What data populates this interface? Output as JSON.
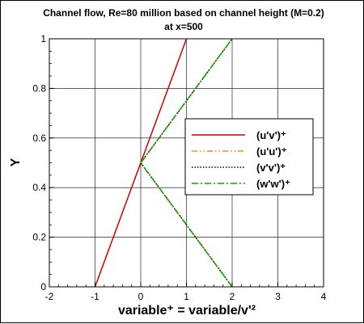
{
  "chart_data": {
    "type": "line",
    "title": "Channel flow, Re=80 million based on channel height (M=0.2)",
    "subtitle": "at x=500",
    "xlabel": "variable⁺ = variable/v'²",
    "ylabel": "Y",
    "xlim": [
      -2,
      4
    ],
    "ylim": [
      0,
      1
    ],
    "xticks": [
      "-2",
      "-1",
      "0",
      "1",
      "2",
      "3",
      "4"
    ],
    "yticks": [
      "0",
      "0.2",
      "0.4",
      "0.6",
      "0.8",
      "1"
    ],
    "grid": true,
    "legend_position": "right",
    "series": [
      {
        "name": "(u'v')⁺",
        "color": "#cc0000",
        "dash": "solid",
        "x": [
          -1,
          1
        ],
        "y": [
          0,
          1
        ]
      },
      {
        "name": "(u'u')⁺",
        "color": "#ff8c00",
        "dash": "dashdotdot",
        "x": [
          2,
          0,
          2
        ],
        "y": [
          0,
          0.5,
          1
        ]
      },
      {
        "name": "(v'v')⁺",
        "color": "#000000",
        "dash": "dotted",
        "x": [
          2,
          0,
          2
        ],
        "y": [
          0,
          0.5,
          1
        ]
      },
      {
        "name": "(w'w')⁺",
        "color": "#00aa00",
        "dash": "dashdot",
        "x": [
          2,
          0,
          2
        ],
        "y": [
          0,
          0.5,
          1
        ]
      }
    ]
  }
}
